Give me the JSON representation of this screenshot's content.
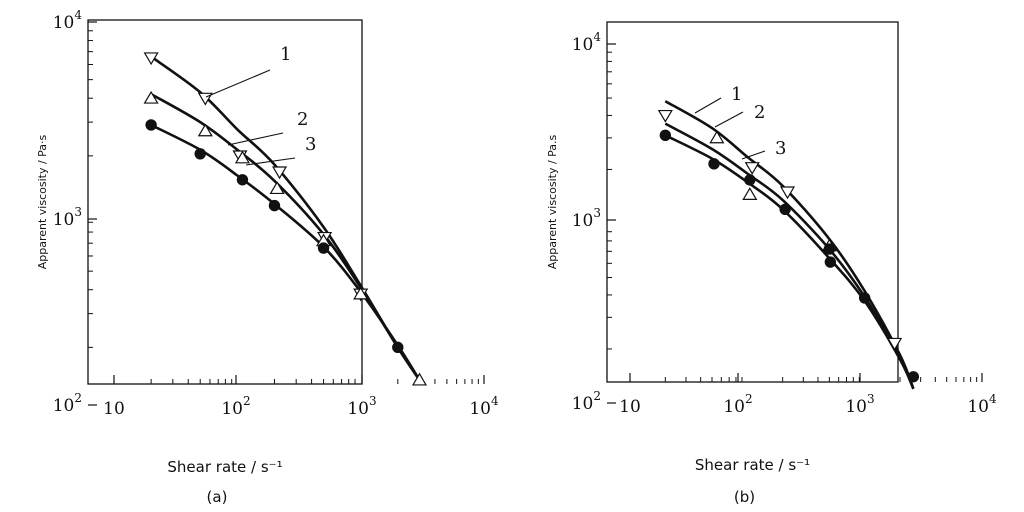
{
  "chart_data": [
    {
      "type": "scatter",
      "caption": "(a)",
      "xlabel": "Shear rate / s⁻¹",
      "ylabel": "Apparent viscosity / Pa·s",
      "xscale": "log",
      "yscale": "log",
      "xlim": [
        10,
        10000
      ],
      "ylim": [
        100,
        10000
      ],
      "x_ticks": [
        {
          "base": "10",
          "exp": ""
        },
        {
          "base": "10",
          "exp": "2"
        },
        {
          "base": "10",
          "exp": "3"
        },
        {
          "base": "10",
          "exp": "4"
        }
      ],
      "y_ticks": [
        {
          "base": "10",
          "exp": "2"
        },
        {
          "base": "10",
          "exp": "3"
        },
        {
          "base": "10",
          "exp": "4"
        }
      ],
      "series": [
        {
          "name": "1",
          "marker": "triangle-down-open",
          "points": [
            [
              20,
              6500
            ],
            [
              55,
              4000
            ],
            [
              105,
              2000
            ],
            [
              220,
              1650
            ],
            [
              510,
              750
            ],
            [
              1000,
              380
            ]
          ],
          "curve": [
            [
              20,
              6600
            ],
            [
              50,
              4300
            ],
            [
              100,
              2750
            ],
            [
              200,
              1800
            ],
            [
              500,
              850
            ],
            [
              1000,
              420
            ],
            [
              2000,
              200
            ],
            [
              3000,
              135
            ]
          ]
        },
        {
          "name": "2",
          "marker": "triangle-up-open",
          "points": [
            [
              20,
              4000
            ],
            [
              55,
              2700
            ],
            [
              110,
              1950
            ],
            [
              210,
              1350
            ],
            [
              500,
              720
            ],
            [
              1000,
              380
            ],
            [
              3000,
              135
            ]
          ],
          "curve": [
            [
              20,
              4200
            ],
            [
              50,
              3000
            ],
            [
              100,
              2150
            ],
            [
              200,
              1480
            ],
            [
              500,
              780
            ],
            [
              1000,
              410
            ],
            [
              2000,
              200
            ],
            [
              3000,
              135
            ]
          ]
        },
        {
          "name": "3",
          "marker": "circle-filled",
          "points": [
            [
              20,
              2900
            ],
            [
              50,
              2050
            ],
            [
              110,
              1500
            ],
            [
              200,
              1100
            ],
            [
              500,
              660
            ],
            [
              2000,
              200
            ]
          ],
          "curve": [
            [
              20,
              2900
            ],
            [
              50,
              2150
            ],
            [
              100,
              1580
            ],
            [
              200,
              1120
            ],
            [
              500,
              670
            ],
            [
              1000,
              390
            ],
            [
              2000,
              205
            ],
            [
              3000,
              135
            ]
          ]
        }
      ]
    },
    {
      "type": "scatter",
      "caption": "(b)",
      "xlabel": "Shear rate / s⁻¹",
      "ylabel": "Apparent viscosity / Pa.s",
      "xscale": "log",
      "yscale": "log",
      "xlim": [
        10,
        10000
      ],
      "ylim": [
        100,
        10000
      ],
      "x_ticks": [
        {
          "base": "10",
          "exp": ""
        },
        {
          "base": "10",
          "exp": "2"
        },
        {
          "base": "10",
          "exp": "3"
        },
        {
          "base": "10",
          "exp": "4"
        }
      ],
      "y_ticks": [
        {
          "base": "10",
          "exp": "2"
        },
        {
          "base": "10",
          "exp": "3"
        },
        {
          "base": "10",
          "exp": "4"
        }
      ],
      "series": [
        {
          "name": "1",
          "marker": "triangle-down-open",
          "points": [
            [
              20,
              4000
            ],
            [
              110,
              2050
            ],
            [
              220,
              1500
            ],
            [
              1800,
              215
            ]
          ],
          "curve": [
            [
              20,
              4800
            ],
            [
              50,
              3400
            ],
            [
              100,
              2350
            ],
            [
              200,
              1620
            ],
            [
              500,
              820
            ],
            [
              1000,
              420
            ],
            [
              2000,
              185
            ],
            [
              2600,
              120
            ]
          ]
        },
        {
          "name": "2",
          "marker": "triangle-up-open",
          "points": [
            [
              55,
              3000
            ],
            [
              105,
              1450
            ],
            [
              500,
              750
            ]
          ],
          "curve": [
            [
              20,
              3600
            ],
            [
              50,
              2600
            ],
            [
              100,
              1900
            ],
            [
              200,
              1350
            ],
            [
              500,
              720
            ],
            [
              1000,
              390
            ],
            [
              2000,
              180
            ],
            [
              2600,
              120
            ]
          ]
        },
        {
          "name": "3",
          "marker": "circle-filled",
          "points": [
            [
              20,
              3100
            ],
            [
              52,
              2150
            ],
            [
              105,
              1750
            ],
            [
              210,
              1200
            ],
            [
              500,
              720
            ],
            [
              510,
              610
            ],
            [
              1000,
              385
            ],
            [
              2600,
              140
            ]
          ],
          "curve": [
            [
              20,
              3100
            ],
            [
              50,
              2300
            ],
            [
              100,
              1700
            ],
            [
              200,
              1200
            ],
            [
              500,
              640
            ],
            [
              1000,
              370
            ],
            [
              2000,
              175
            ],
            [
              2600,
              120
            ]
          ]
        }
      ]
    }
  ]
}
